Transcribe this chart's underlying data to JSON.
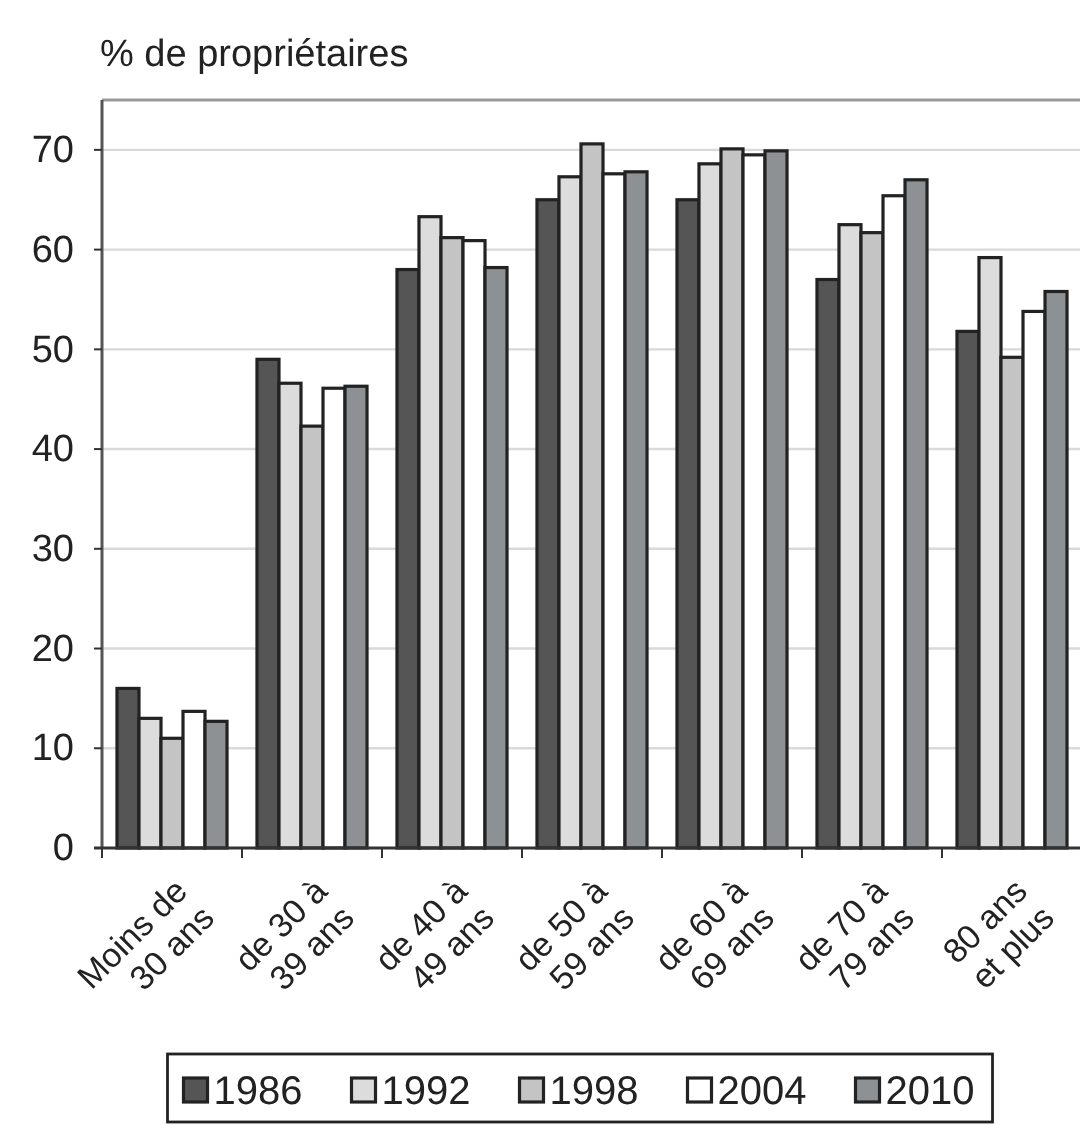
{
  "chart_data": {
    "type": "bar",
    "ylabel": "% de propriétaires",
    "categories": [
      "Moins de 30 ans",
      "de 30 à 39 ans",
      "de 40 à 49 ans",
      "de 50 à 59 ans",
      "de 60 à 69 ans",
      "de 70 à 79 ans",
      "80 ans et plus"
    ],
    "series": [
      {
        "name": "1986",
        "color": "#555555",
        "values": [
          16,
          49,
          58,
          65,
          65,
          57,
          51.8
        ]
      },
      {
        "name": "1992",
        "color": "#dcdcdc",
        "values": [
          13,
          46.6,
          63.3,
          67.3,
          68.6,
          62.5,
          59.2
        ]
      },
      {
        "name": "1998",
        "color": "#c4c4c4",
        "values": [
          11,
          42.3,
          61.2,
          70.6,
          70.1,
          61.7,
          49.2
        ]
      },
      {
        "name": "2004",
        "color": "#ffffff",
        "values": [
          13.7,
          46.1,
          60.9,
          67.6,
          69.5,
          65.4,
          53.8
        ]
      },
      {
        "name": "2010",
        "color": "#8e9194",
        "values": [
          12.7,
          46.3,
          58.2,
          67.8,
          69.9,
          67,
          55.8
        ]
      }
    ],
    "ylim": [
      0,
      75
    ],
    "yticks": [
      0,
      10,
      20,
      30,
      40,
      50,
      60,
      70
    ],
    "grid": "y",
    "legend": "bottom"
  }
}
